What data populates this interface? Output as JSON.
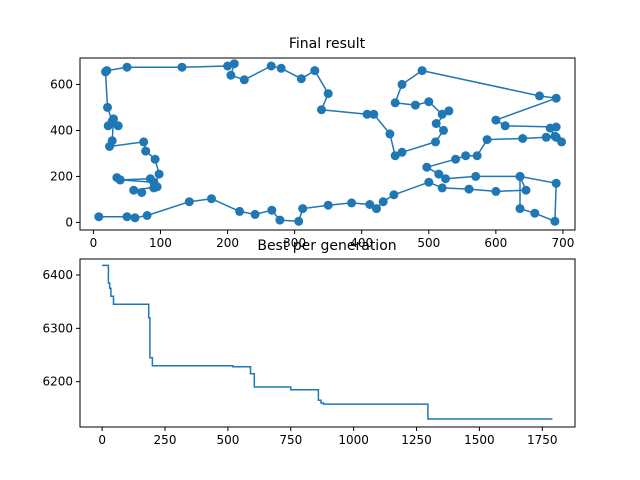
{
  "chart_data": [
    {
      "type": "line",
      "title": "Final result",
      "markers": true,
      "color": "#1f77b4",
      "xlim": [
        -20,
        718
      ],
      "ylim": [
        -33,
        715
      ],
      "x_ticks": [
        0,
        100,
        200,
        300,
        400,
        500,
        600,
        700
      ],
      "y_ticks": [
        0,
        200,
        400,
        600
      ],
      "points": [
        [
          8,
          25
        ],
        [
          50,
          25
        ],
        [
          62,
          20
        ],
        [
          80,
          30
        ],
        [
          143,
          90
        ],
        [
          176,
          103
        ],
        [
          218,
          48
        ],
        [
          241,
          35
        ],
        [
          266,
          53
        ],
        [
          278,
          10
        ],
        [
          306,
          5
        ],
        [
          312,
          60
        ],
        [
          350,
          75
        ],
        [
          385,
          85
        ],
        [
          412,
          78
        ],
        [
          422,
          60
        ],
        [
          432,
          90
        ],
        [
          448,
          120
        ],
        [
          500,
          175
        ],
        [
          520,
          150
        ],
        [
          560,
          145
        ],
        [
          600,
          135
        ],
        [
          645,
          140
        ],
        [
          636,
          200
        ],
        [
          690,
          170
        ],
        [
          688,
          5
        ],
        [
          658,
          40
        ],
        [
          636,
          60
        ],
        [
          636,
          200
        ],
        [
          570,
          200
        ],
        [
          525,
          190
        ],
        [
          515,
          210
        ],
        [
          497,
          240
        ],
        [
          540,
          275
        ],
        [
          555,
          290
        ],
        [
          572,
          290
        ],
        [
          587,
          360
        ],
        [
          640,
          365
        ],
        [
          675,
          370
        ],
        [
          690,
          370
        ],
        [
          698,
          350
        ],
        [
          688,
          375
        ],
        [
          681,
          410
        ],
        [
          690,
          415
        ],
        [
          614,
          420
        ],
        [
          600,
          445
        ],
        [
          690,
          540
        ],
        [
          665,
          550
        ],
        [
          490,
          660
        ],
        [
          460,
          600
        ],
        [
          450,
          520
        ],
        [
          480,
          510
        ],
        [
          500,
          525
        ],
        [
          520,
          470
        ],
        [
          530,
          485
        ],
        [
          511,
          430
        ],
        [
          522,
          400
        ],
        [
          510,
          350
        ],
        [
          460,
          305
        ],
        [
          450,
          290
        ],
        [
          442,
          385
        ],
        [
          418,
          470
        ],
        [
          408,
          470
        ],
        [
          340,
          490
        ],
        [
          350,
          560
        ],
        [
          330,
          660
        ],
        [
          310,
          625
        ],
        [
          280,
          670
        ],
        [
          265,
          680
        ],
        [
          225,
          620
        ],
        [
          205,
          640
        ],
        [
          210,
          690
        ],
        [
          200,
          680
        ],
        [
          132,
          675
        ],
        [
          50,
          675
        ],
        [
          20,
          660
        ],
        [
          18,
          655
        ],
        [
          21,
          500
        ],
        [
          28,
          440
        ],
        [
          37,
          420
        ],
        [
          22,
          420
        ],
        [
          30,
          450
        ],
        [
          28,
          355
        ],
        [
          24,
          330
        ],
        [
          75,
          350
        ],
        [
          78,
          310
        ],
        [
          92,
          275
        ],
        [
          98,
          210
        ],
        [
          90,
          150
        ],
        [
          85,
          190
        ],
        [
          40,
          185
        ],
        [
          35,
          195
        ],
        [
          40,
          185
        ],
        [
          90,
          175
        ],
        [
          95,
          155
        ],
        [
          60,
          140
        ],
        [
          72,
          130
        ]
      ]
    },
    {
      "type": "line",
      "title": "Best per generation",
      "color": "#1f77b4",
      "xlim": [
        -88,
        1880
      ],
      "ylim": [
        6115,
        6430
      ],
      "x_ticks": [
        0,
        250,
        500,
        750,
        1000,
        1250,
        1500,
        1750
      ],
      "y_ticks": [
        6200,
        6300,
        6400
      ],
      "x": [
        0,
        25,
        25,
        30,
        30,
        35,
        35,
        45,
        45,
        70,
        70,
        185,
        185,
        190,
        190,
        200,
        200,
        520,
        520,
        590,
        590,
        605,
        605,
        750,
        750,
        860,
        860,
        870,
        870,
        880,
        880,
        1295,
        1295,
        1790
      ],
      "y": [
        6418,
        6418,
        6385,
        6385,
        6375,
        6375,
        6360,
        6360,
        6345,
        6345,
        6345,
        6345,
        6320,
        6320,
        6245,
        6245,
        6230,
        6230,
        6228,
        6228,
        6215,
        6215,
        6190,
        6190,
        6185,
        6185,
        6165,
        6165,
        6160,
        6160,
        6158,
        6158,
        6130,
        6130
      ]
    }
  ]
}
